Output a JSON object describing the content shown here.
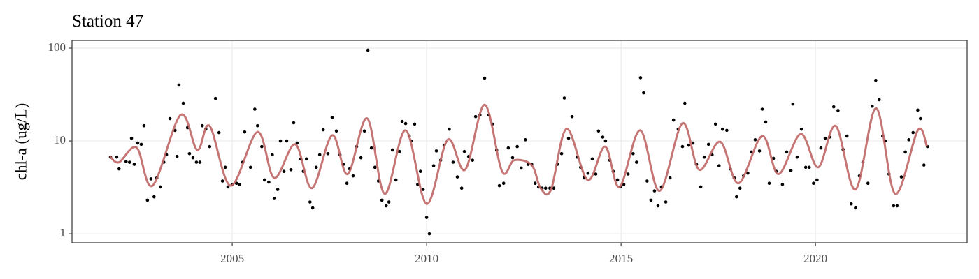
{
  "chart_data": {
    "type": "scatter",
    "title": "Station 47",
    "y_label": "chl-a (ug/L)",
    "log_y": true,
    "grid": true,
    "xlim": [
      2000.88,
      2023.9
    ],
    "xticks": [
      2005,
      2010,
      2015,
      2020
    ],
    "ylim": [
      0.8,
      121
    ],
    "yticks": [
      1,
      10,
      100
    ],
    "points": {
      "color": "#000000",
      "x": [
        2001.87,
        2002.03,
        2002.09,
        2002.27,
        2002.36,
        2002.41,
        2002.48,
        2002.57,
        2002.66,
        2002.73,
        2002.82,
        2002.91,
        2002.99,
        2003.06,
        2003.15,
        2003.24,
        2003.31,
        2003.4,
        2003.53,
        2003.58,
        2003.63,
        2003.74,
        2003.85,
        2003.9,
        2003.99,
        2004.08,
        2004.17,
        2004.23,
        2004.32,
        2004.42,
        2004.57,
        2004.66,
        2004.75,
        2004.82,
        2004.89,
        2005.0,
        2005.11,
        2005.18,
        2005.27,
        2005.32,
        2005.47,
        2005.58,
        2005.65,
        2005.76,
        2005.83,
        2005.94,
        2006.03,
        2006.08,
        2006.17,
        2006.24,
        2006.33,
        2006.4,
        2006.51,
        2006.58,
        2006.67,
        2006.76,
        2006.83,
        2006.91,
        2007.0,
        2007.07,
        2007.16,
        2007.25,
        2007.34,
        2007.46,
        2007.57,
        2007.68,
        2007.77,
        2007.86,
        2007.95,
        2008.02,
        2008.11,
        2008.2,
        2008.31,
        2008.4,
        2008.49,
        2008.58,
        2008.67,
        2008.76,
        2008.85,
        2008.96,
        2009.03,
        2009.12,
        2009.21,
        2009.3,
        2009.37,
        2009.46,
        2009.55,
        2009.6,
        2009.69,
        2009.77,
        2009.84,
        2009.91,
        2010.0,
        2010.07,
        2010.18,
        2010.25,
        2010.36,
        2010.45,
        2010.58,
        2010.68,
        2010.79,
        2010.9,
        2010.97,
        2011.08,
        2011.18,
        2011.26,
        2011.37,
        2011.49,
        2011.6,
        2011.69,
        2011.8,
        2011.87,
        2011.98,
        2012.1,
        2012.21,
        2012.33,
        2012.43,
        2012.54,
        2012.61,
        2012.7,
        2012.79,
        2012.88,
        2012.97,
        2013.06,
        2013.17,
        2013.27,
        2013.36,
        2013.47,
        2013.54,
        2013.65,
        2013.74,
        2013.87,
        2013.96,
        2014.05,
        2014.15,
        2014.26,
        2014.35,
        2014.42,
        2014.53,
        2014.6,
        2014.71,
        2014.8,
        2014.91,
        2014.98,
        2015.07,
        2015.18,
        2015.31,
        2015.4,
        2015.5,
        2015.58,
        2015.67,
        2015.77,
        2015.86,
        2015.95,
        2016.04,
        2016.15,
        2016.26,
        2016.35,
        2016.47,
        2016.58,
        2016.64,
        2016.74,
        2016.85,
        2016.94,
        2017.05,
        2017.14,
        2017.25,
        2017.34,
        2017.43,
        2017.52,
        2017.61,
        2017.72,
        2017.81,
        2017.91,
        2017.97,
        2018.06,
        2018.15,
        2018.26,
        2018.35,
        2018.45,
        2018.56,
        2018.63,
        2018.72,
        2018.81,
        2018.92,
        2018.99,
        2019.15,
        2019.26,
        2019.37,
        2019.42,
        2019.53,
        2019.64,
        2019.75,
        2019.84,
        2019.95,
        2020.04,
        2020.14,
        2020.25,
        2020.36,
        2020.47,
        2020.58,
        2020.71,
        2020.81,
        2020.92,
        2021.03,
        2021.13,
        2021.22,
        2021.35,
        2021.46,
        2021.55,
        2021.64,
        2021.73,
        2021.8,
        2021.89,
        2022.01,
        2022.1,
        2022.21,
        2022.31,
        2022.4,
        2022.51,
        2022.63,
        2022.7,
        2022.79,
        2022.88
      ],
      "values": [
        6.7,
        6.7,
        5.0,
        6.0,
        5.9,
        10.7,
        5.6,
        9.5,
        9.2,
        14.6,
        2.3,
        3.9,
        2.5,
        4.0,
        3.2,
        5.9,
        7.1,
        17.4,
        13,
        6.8,
        40,
        25.5,
        13.9,
        7.3,
        6.6,
        5.9,
        5.9,
        14.6,
        13.4,
        8.7,
        28.7,
        12.3,
        3.7,
        5.2,
        3.2,
        3.4,
        3.5,
        3.4,
        5.9,
        12.5,
        5.2,
        22,
        14.6,
        8.7,
        3.8,
        3.6,
        7.1,
        2.4,
        3.0,
        10,
        4.7,
        10,
        4.9,
        15.7,
        9.5,
        6.4,
        4.7,
        6.4,
        2.2,
        1.9,
        5.2,
        7.1,
        13.2,
        7.3,
        17.9,
        12.8,
        7.1,
        5.6,
        3.5,
        5.0,
        4.2,
        8.7,
        6.6,
        12.8,
        95,
        8.4,
        5.2,
        3.7,
        2.3,
        2.0,
        2.2,
        8.0,
        3.8,
        7.7,
        16.2,
        15.4,
        11.3,
        10,
        15.2,
        3.4,
        4.7,
        3.0,
        1.5,
        1.0,
        5.4,
        7.8,
        6.2,
        9.0,
        13.4,
        5.9,
        4.1,
        3.1,
        7.7,
        6.8,
        6.2,
        18.3,
        19.0,
        47.5,
        19,
        15.2,
        8.0,
        3.3,
        3.5,
        8.4,
        6.6,
        8.7,
        5.1,
        10.3,
        5.6,
        5.6,
        3.5,
        3.2,
        3.1,
        3.1,
        3.1,
        3.1,
        5.6,
        7.3,
        29,
        10.7,
        18.3,
        6.7,
        5.2,
        4.0,
        4.5,
        6.4,
        4.4,
        12.8,
        11,
        10,
        6.2,
        4.7,
        3.8,
        3.2,
        3.4,
        4.4,
        7.3,
        5.9,
        48,
        33,
        3.7,
        2.3,
        2.9,
        2.0,
        3.2,
        2.2,
        4.0,
        16.8,
        13.4,
        8.7,
        25.5,
        9.0,
        9.5,
        5.6,
        3.2,
        6.7,
        9.2,
        7.1,
        15.2,
        5.4,
        13.4,
        13,
        5.0,
        4.0,
        2.5,
        3.1,
        4.2,
        4.5,
        7.6,
        10.3,
        7.8,
        22,
        16.0,
        3.5,
        6.5,
        4.7,
        3.4,
        7.6,
        4.8,
        25,
        6.7,
        13.4,
        5.2,
        5.2,
        3.5,
        3.8,
        8.4,
        10.7,
        11,
        23.3,
        21.3,
        8.1,
        11.3,
        2.1,
        1.9,
        4.2,
        5.9,
        3.5,
        23.7,
        45,
        27.8,
        11.3,
        10,
        4.4,
        2.0,
        2.0,
        4.1,
        7.6,
        10.3,
        12.3,
        21.5,
        17.4,
        5.5,
        8.7
      ]
    },
    "smooth": {
      "color": "#c06666",
      "x": [
        2001.87,
        2002.09,
        2002.54,
        2002.95,
        2003.67,
        2004.1,
        2004.42,
        2004.96,
        2005.65,
        2006.08,
        2006.62,
        2007.05,
        2007.57,
        2007.97,
        2008.47,
        2008.92,
        2009.46,
        2010.0,
        2010.54,
        2010.99,
        2011.49,
        2011.94,
        2012.25,
        2012.7,
        2012.93,
        2013.2,
        2013.6,
        2014.14,
        2014.59,
        2014.96,
        2015.49,
        2015.99,
        2016.58,
        2017.01,
        2017.55,
        2018.02,
        2018.63,
        2019.05,
        2019.62,
        2020.07,
        2020.52,
        2021.03,
        2021.56,
        2022.05,
        2022.63,
        2022.86
      ],
      "values": [
        6.7,
        5.9,
        8.5,
        3.3,
        19,
        8,
        14.5,
        3.3,
        12.5,
        4,
        9.2,
        3.1,
        11.5,
        4.4,
        17.5,
        2.7,
        13,
        2.1,
        10.3,
        4.9,
        24.5,
        4.7,
        6.2,
        5.5,
        3.1,
        3.0,
        13.5,
        3.8,
        8.7,
        3.2,
        13,
        2.9,
        15.5,
        4.9,
        9.8,
        3.5,
        11.3,
        4.4,
        11.9,
        5.2,
        14.5,
        3.0,
        22.5,
        2.7,
        13,
        8.9
      ]
    }
  }
}
